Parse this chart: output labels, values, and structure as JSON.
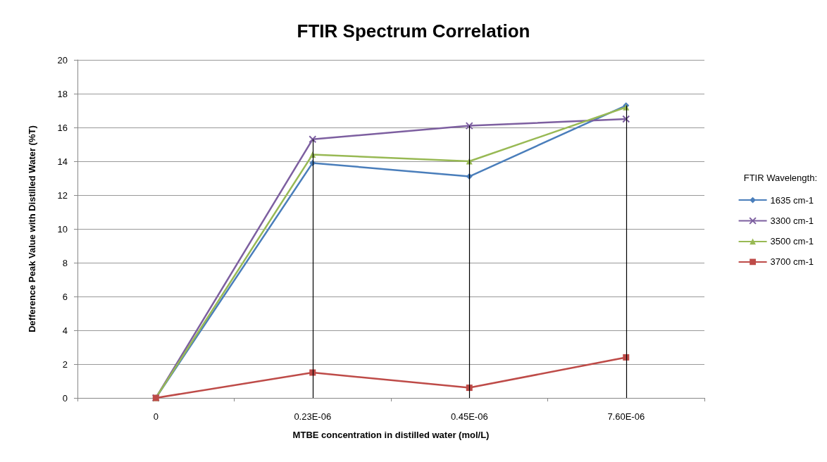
{
  "chart_data": {
    "type": "line",
    "title": "FTIR Spectrum Correlation",
    "xlabel": "MTBE concentration in distilled water (mol/L)",
    "ylabel": "Defference Peak Value with Distilled Water (%T)",
    "legend_title": "FTIR Wavelength:",
    "categories": [
      "0",
      "0.23E-06",
      "0.45E-06",
      "7.60E-06"
    ],
    "series": [
      {
        "name": "1635 cm-1",
        "color": "#4a7ebb",
        "marker": "diamond",
        "values": [
          0,
          13.9,
          13.1,
          17.3
        ]
      },
      {
        "name": "3300 cm-1",
        "color": "#7d5fa0",
        "marker": "cross",
        "values": [
          0,
          15.3,
          16.1,
          16.5
        ]
      },
      {
        "name": "3500 cm-1",
        "color": "#98b954",
        "marker": "triangle",
        "values": [
          0,
          14.4,
          14.0,
          17.2
        ]
      },
      {
        "name": "3700 cm-1",
        "color": "#be4b48",
        "marker": "square",
        "values": [
          0,
          1.5,
          0.6,
          2.4
        ]
      }
    ],
    "ref_lines": [
      {
        "axis": "x",
        "value": "0.23E-06",
        "color": "#000000"
      },
      {
        "axis": "x",
        "value": "0.45E-06",
        "color": "#000000"
      },
      {
        "axis": "x",
        "value": "7.60E-06",
        "color": "#000000"
      }
    ],
    "ylim": [
      0,
      20
    ],
    "yticks": [
      0,
      2,
      4,
      6,
      8,
      10,
      12,
      14,
      16,
      18,
      20
    ],
    "grid": "y",
    "legend": "right"
  }
}
